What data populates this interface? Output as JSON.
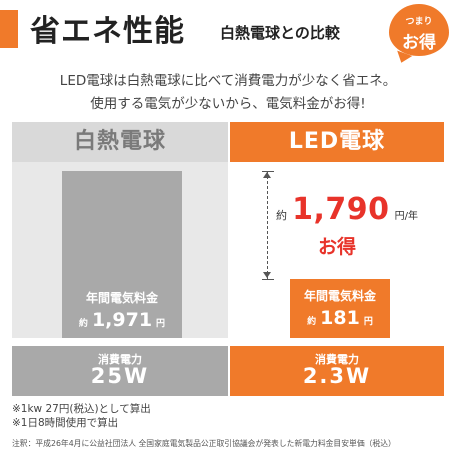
{
  "header": {
    "title": "省エネ性能",
    "subtitle": "白熱電球との比較",
    "badge_small": "つまり",
    "badge_main": "お得"
  },
  "intro": {
    "line1": "LED電球は白熱電球に比べて消費電力が少なく省エネ。",
    "line2": "使用する電気が少ないから、電気料金がお得!"
  },
  "columns": {
    "incandescent": "白熱電球",
    "led": "LED電球"
  },
  "incandescent_bar": {
    "label": "年間電気料金",
    "prefix": "約",
    "value": "1,971",
    "unit": "円"
  },
  "led_bar": {
    "label": "年間電気料金",
    "prefix": "約",
    "value": "181",
    "unit": "円"
  },
  "savings": {
    "prefix": "約",
    "value": "1,790",
    "unit": "円/年",
    "tag": "お得"
  },
  "power": {
    "incandescent_label": "消費電力",
    "incandescent_value": "25W",
    "led_label": "消費電力",
    "led_value": "2.3W"
  },
  "notes": {
    "line1": "※1kw 27円(税込)として算出",
    "line2": "※1日8時間使用で算出"
  },
  "footnote": "注釈：平成26年4月に公益社団法人 全国家庭電気製品公正取引協議会が発表した新電力料金目安単価（税込）",
  "colors": {
    "accent": "#f07a2a",
    "highlight": "#e8332a",
    "gray_bar": "#a9a9a9"
  },
  "chart_data": {
    "type": "bar",
    "categories": [
      "白熱電球",
      "LED電球"
    ],
    "values": [
      1971,
      181
    ],
    "ylabel": "年間電気料金",
    "title": ""
  }
}
